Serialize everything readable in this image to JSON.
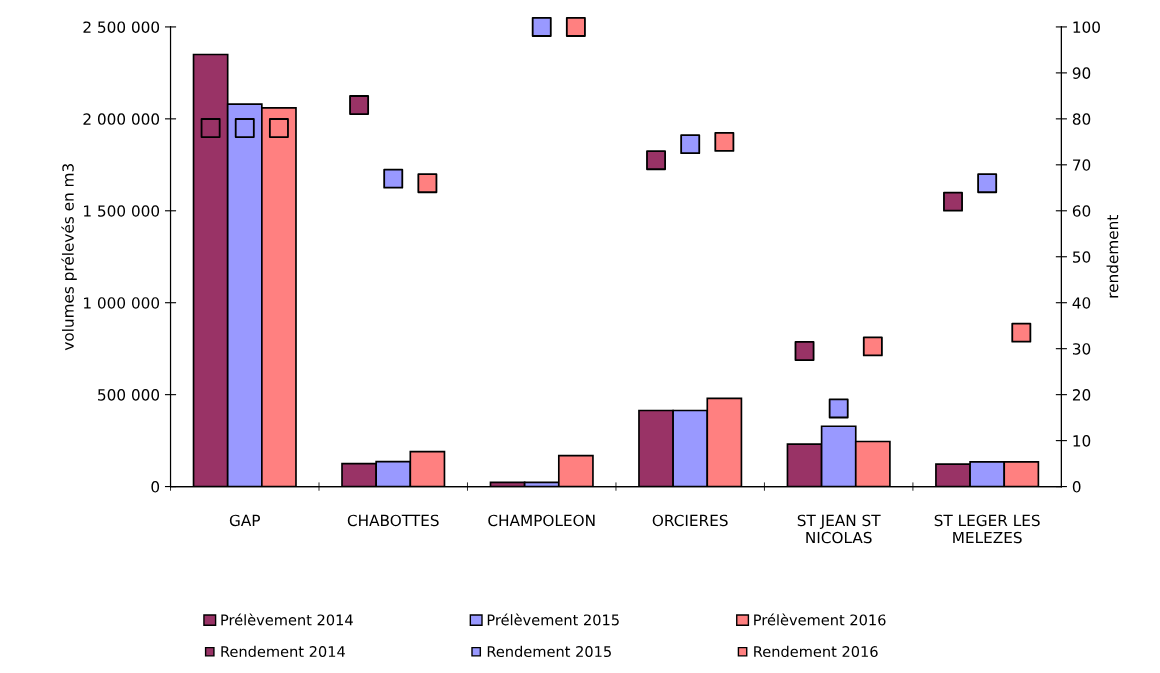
{
  "chart_data": {
    "type": "bar",
    "ylabel": "volumes prélevés en m3",
    "y2label": "rendement",
    "categories": [
      "GAP",
      "CHABOTTES",
      "CHAMPOLEON",
      "ORCIERES",
      "ST JEAN ST\nNICOLAS",
      "ST LEGER LES\nMELEZES"
    ],
    "series": [
      {
        "name": "Prélèvement 2014",
        "color": "#993366",
        "values": [
          2350000,
          125000,
          23000,
          414000,
          231000,
          122000
        ]
      },
      {
        "name": "Prélèvement 2015",
        "color": "#9999ff",
        "values": [
          2080000,
          136000,
          23000,
          414000,
          328000,
          134000
        ]
      },
      {
        "name": "Prélèvement 2016",
        "color": "#ff8080",
        "values": [
          2060000,
          190000,
          168000,
          480000,
          245000,
          134000
        ]
      },
      {
        "name": "Rendement 2014",
        "type": "scatter",
        "axis": "y2",
        "color": "#993366",
        "values": [
          78,
          83,
          null,
          71,
          29.5,
          62
        ]
      },
      {
        "name": "Rendement 2015",
        "type": "scatter",
        "axis": "y2",
        "color": "#9999ff",
        "values": [
          78,
          67,
          100,
          74.5,
          17,
          66
        ]
      },
      {
        "name": "Rendement 2016",
        "type": "scatter",
        "axis": "y2",
        "color": "#ff8080",
        "values": [
          78,
          66,
          100,
          75,
          30.5,
          33.5
        ]
      }
    ],
    "ylim": [
      0,
      2500000
    ],
    "yticks": [
      {
        "value": 0,
        "label": "0"
      },
      {
        "value": 500000,
        "label": "500 000"
      },
      {
        "value": 1000000,
        "label": "1 000 000"
      },
      {
        "value": 1500000,
        "label": "1 500 000"
      },
      {
        "value": 2000000,
        "label": "2 000 000"
      },
      {
        "value": 2500000,
        "label": "2 500 000"
      }
    ],
    "y2lim": [
      0,
      100
    ],
    "y2ticks": [
      0,
      10,
      20,
      30,
      40,
      50,
      60,
      70,
      80,
      90,
      100
    ],
    "marker": "square",
    "grid": false,
    "legend": "bottom"
  }
}
